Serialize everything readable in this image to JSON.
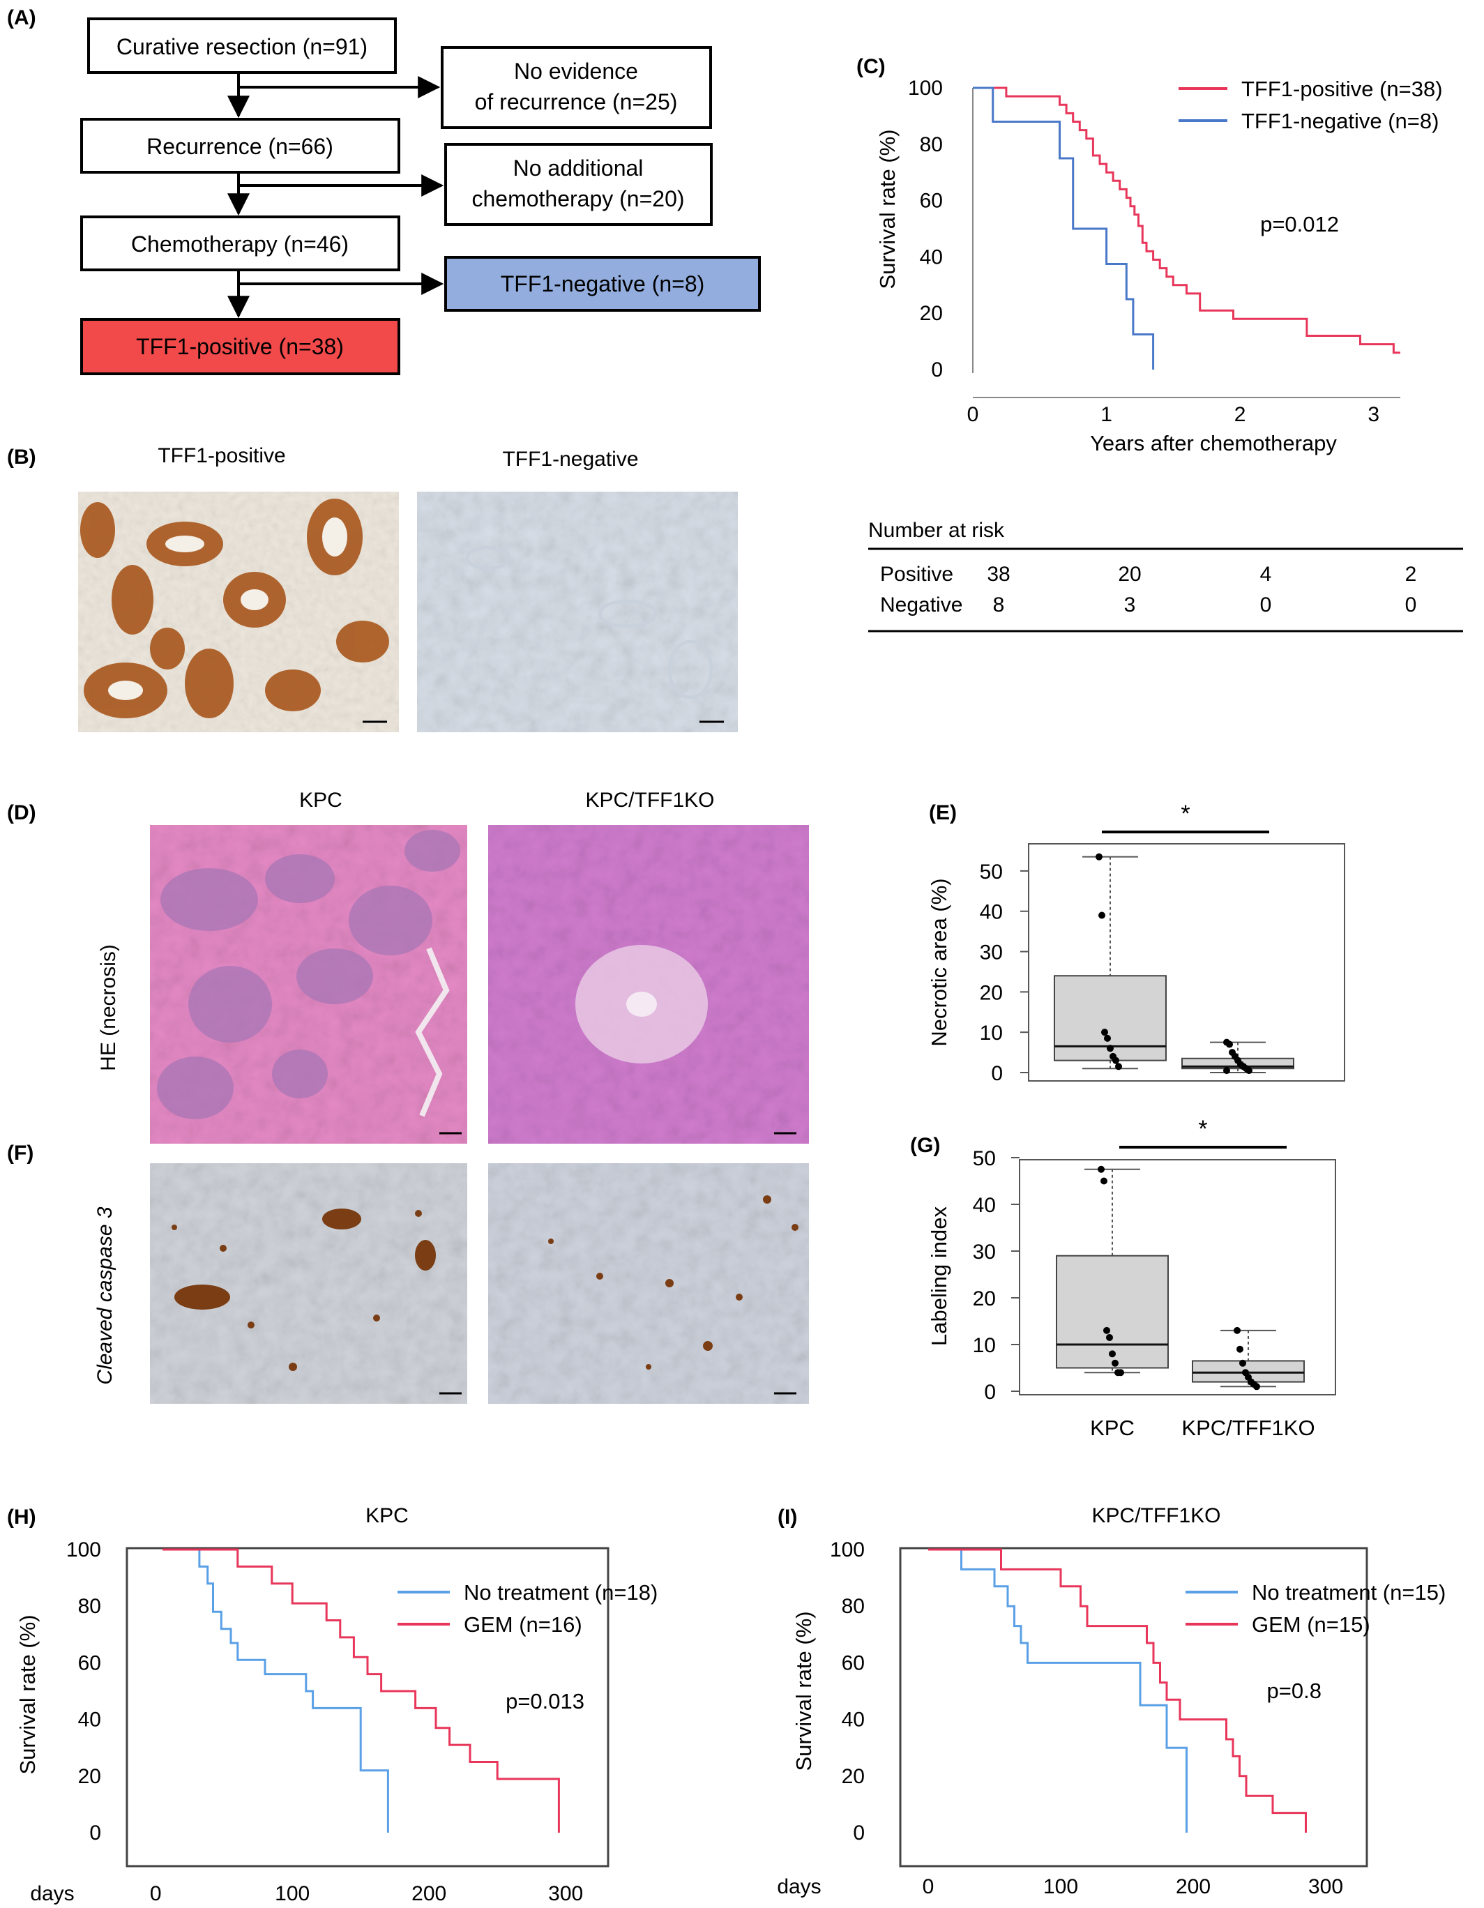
{
  "panels": {
    "A": "(A)",
    "B": "(B)",
    "C": "(C)",
    "D": "(D)",
    "E": "(E)",
    "F": "(F)",
    "G": "(G)",
    "H": "(H)",
    "I": "(I)"
  },
  "flowchart": {
    "curative": "Curative resection (n=91)",
    "no_evidence_1": "No evidence",
    "no_evidence_2": "of recurrence (n=25)",
    "recurrence": "Recurrence (n=66)",
    "no_chemo_1": "No additional",
    "no_chemo_2": "chemotherapy (n=20)",
    "chemotherapy": "Chemotherapy (n=46)",
    "tff1_negative": "TFF1-negative (n=8)",
    "tff1_positive": "TFF1-positive (n=38)",
    "colors": {
      "positive": "#f24a4a",
      "negative": "#93aede"
    }
  },
  "histology_B": {
    "left_label": "TFF1-positive",
    "right_label": "TFF1-negative"
  },
  "risk_table": {
    "title": "Number at risk",
    "rows": [
      {
        "label": "Positive",
        "values": [
          "38",
          "20",
          "4",
          "2"
        ]
      },
      {
        "label": "Negative",
        "values": [
          "8",
          "3",
          "0",
          "0"
        ]
      }
    ]
  },
  "histology_D": {
    "col_left": "KPC",
    "col_right": "KPC/TFF1KO",
    "row_label": "HE (necrosis)"
  },
  "histology_F": {
    "row_label": "Cleaved caspase 3"
  },
  "chart_data": [
    {
      "id": "C",
      "type": "line",
      "xlabel": "Years after chemotherapy",
      "ylabel": "Survival rate (%)",
      "xlim": [
        0,
        3.2
      ],
      "ylim": [
        0,
        100
      ],
      "xticks": [
        "0",
        "1",
        "2",
        "3"
      ],
      "yticks": [
        "0",
        "20",
        "40",
        "60",
        "80",
        "100"
      ],
      "annotation": "p=0.012",
      "series": [
        {
          "name": "TFF1-positive (n=38)",
          "color": "#e8365a",
          "steps": [
            [
              0,
              100
            ],
            [
              0.25,
              100
            ],
            [
              0.25,
              97
            ],
            [
              0.65,
              97
            ],
            [
              0.65,
              94
            ],
            [
              0.7,
              94
            ],
            [
              0.7,
              91
            ],
            [
              0.75,
              91
            ],
            [
              0.75,
              88
            ],
            [
              0.8,
              88
            ],
            [
              0.8,
              85
            ],
            [
              0.85,
              85
            ],
            [
              0.85,
              82
            ],
            [
              0.9,
              82
            ],
            [
              0.9,
              76
            ],
            [
              0.95,
              76
            ],
            [
              0.95,
              73
            ],
            [
              1.0,
              73
            ],
            [
              1.0,
              70
            ],
            [
              1.05,
              70
            ],
            [
              1.05,
              67
            ],
            [
              1.1,
              67
            ],
            [
              1.1,
              64
            ],
            [
              1.15,
              64
            ],
            [
              1.15,
              61
            ],
            [
              1.18,
              61
            ],
            [
              1.18,
              58
            ],
            [
              1.21,
              58
            ],
            [
              1.21,
              55
            ],
            [
              1.24,
              55
            ],
            [
              1.24,
              51
            ],
            [
              1.27,
              51
            ],
            [
              1.27,
              45
            ],
            [
              1.3,
              45
            ],
            [
              1.3,
              42
            ],
            [
              1.35,
              42
            ],
            [
              1.35,
              39
            ],
            [
              1.4,
              39
            ],
            [
              1.4,
              36
            ],
            [
              1.45,
              36
            ],
            [
              1.45,
              33
            ],
            [
              1.5,
              33
            ],
            [
              1.5,
              30
            ],
            [
              1.6,
              30
            ],
            [
              1.6,
              27
            ],
            [
              1.7,
              27
            ],
            [
              1.7,
              21
            ],
            [
              1.95,
              21
            ],
            [
              1.95,
              18
            ],
            [
              2.5,
              18
            ],
            [
              2.5,
              12
            ],
            [
              2.9,
              12
            ],
            [
              2.9,
              9
            ],
            [
              3.15,
              9
            ],
            [
              3.15,
              6
            ],
            [
              3.2,
              6
            ]
          ]
        },
        {
          "name": "TFF1-negative (n=8)",
          "color": "#4a78c8",
          "steps": [
            [
              0,
              100
            ],
            [
              0.15,
              100
            ],
            [
              0.15,
              88
            ],
            [
              0.65,
              88
            ],
            [
              0.65,
              75
            ],
            [
              0.75,
              75
            ],
            [
              0.75,
              50
            ],
            [
              1.0,
              50
            ],
            [
              1.0,
              37.5
            ],
            [
              1.15,
              37.5
            ],
            [
              1.15,
              25
            ],
            [
              1.2,
              25
            ],
            [
              1.2,
              12.5
            ],
            [
              1.35,
              12.5
            ],
            [
              1.35,
              0
            ]
          ]
        }
      ]
    },
    {
      "id": "E",
      "type": "box",
      "ylabel": "Necrotic area (%)",
      "ylim": [
        0,
        55
      ],
      "yticks": [
        "0",
        "10",
        "20",
        "30",
        "40",
        "50"
      ],
      "significance": "*",
      "groups": [
        {
          "name": "KPC",
          "whisker_low": 1,
          "q1": 3,
          "median": 6.5,
          "q3": 24,
          "whisker_high": 53.5,
          "points": [
            53.5,
            39,
            10,
            8.5,
            6,
            4,
            3,
            1.5
          ]
        },
        {
          "name": "KPC/TFF1KO",
          "whisker_low": 0,
          "q1": 1,
          "median": 1.5,
          "q3": 3.5,
          "whisker_high": 7.5,
          "points": [
            7.5,
            7,
            5,
            4,
            3,
            2,
            1.5,
            1,
            0.5,
            0.5
          ]
        }
      ]
    },
    {
      "id": "G",
      "type": "box",
      "ylabel": "Labeling index",
      "ylim": [
        0,
        50
      ],
      "yticks": [
        "0",
        "10",
        "20",
        "30",
        "40",
        "50"
      ],
      "xticks": [
        "KPC",
        "KPC/TFF1KO"
      ],
      "significance": "*",
      "groups": [
        {
          "name": "KPC",
          "whisker_low": 4,
          "q1": 5,
          "median": 10,
          "q3": 29,
          "whisker_high": 47.5,
          "points": [
            47.5,
            45,
            13,
            11.5,
            8,
            6,
            4,
            4
          ]
        },
        {
          "name": "KPC/TFF1KO",
          "whisker_low": 1,
          "q1": 2,
          "median": 4,
          "q3": 6.5,
          "whisker_high": 13,
          "points": [
            13,
            9,
            6,
            4,
            3,
            2,
            1.5,
            1
          ]
        }
      ]
    },
    {
      "id": "H",
      "type": "line",
      "title": "KPC",
      "xlabel": "days",
      "ylabel": "Survival rate (%)",
      "xlim": [
        -20,
        330
      ],
      "ylim": [
        0,
        100
      ],
      "xticks": [
        "0",
        "100",
        "200",
        "300"
      ],
      "yticks": [
        "0",
        "20",
        "40",
        "60",
        "80",
        "100"
      ],
      "annotation": "p=0.013",
      "series": [
        {
          "name": "No treatment (n=18)",
          "color": "#5aa0e6",
          "steps": [
            [
              5,
              100
            ],
            [
              32,
              100
            ],
            [
              32,
              94
            ],
            [
              38,
              94
            ],
            [
              38,
              88
            ],
            [
              42,
              88
            ],
            [
              42,
              78
            ],
            [
              48,
              78
            ],
            [
              48,
              72
            ],
            [
              55,
              72
            ],
            [
              55,
              67
            ],
            [
              60,
              67
            ],
            [
              60,
              61
            ],
            [
              80,
              61
            ],
            [
              80,
              56
            ],
            [
              110,
              56
            ],
            [
              110,
              50
            ],
            [
              115,
              50
            ],
            [
              115,
              44
            ],
            [
              150,
              44
            ],
            [
              150,
              22
            ],
            [
              170,
              22
            ],
            [
              170,
              0
            ]
          ]
        },
        {
          "name": "GEM (n=16)",
          "color": "#e8365a",
          "steps": [
            [
              5,
              100
            ],
            [
              60,
              100
            ],
            [
              60,
              94
            ],
            [
              85,
              94
            ],
            [
              85,
              88
            ],
            [
              100,
              88
            ],
            [
              100,
              81
            ],
            [
              125,
              81
            ],
            [
              125,
              75
            ],
            [
              135,
              75
            ],
            [
              135,
              69
            ],
            [
              145,
              69
            ],
            [
              145,
              62
            ],
            [
              155,
              62
            ],
            [
              155,
              56
            ],
            [
              165,
              56
            ],
            [
              165,
              50
            ],
            [
              190,
              50
            ],
            [
              190,
              44
            ],
            [
              205,
              44
            ],
            [
              205,
              37
            ],
            [
              215,
              37
            ],
            [
              215,
              31
            ],
            [
              230,
              31
            ],
            [
              230,
              25
            ],
            [
              250,
              25
            ],
            [
              250,
              19
            ],
            [
              295,
              19
            ],
            [
              295,
              0
            ]
          ]
        }
      ]
    },
    {
      "id": "I",
      "type": "line",
      "title": "KPC/TFF1KO",
      "xlabel": "days",
      "ylabel": "Survival rate (%)",
      "xlim": [
        -20,
        330
      ],
      "ylim": [
        0,
        100
      ],
      "xticks": [
        "0",
        "100",
        "200",
        "300"
      ],
      "yticks": [
        "0",
        "20",
        "40",
        "60",
        "80",
        "100"
      ],
      "annotation": "p=0.8",
      "series": [
        {
          "name": "No treatment (n=15)",
          "color": "#5aa0e6",
          "steps": [
            [
              0,
              100
            ],
            [
              25,
              100
            ],
            [
              25,
              93
            ],
            [
              50,
              93
            ],
            [
              50,
              87
            ],
            [
              60,
              87
            ],
            [
              60,
              80
            ],
            [
              65,
              80
            ],
            [
              65,
              73
            ],
            [
              70,
              73
            ],
            [
              70,
              67
            ],
            [
              75,
              67
            ],
            [
              75,
              60
            ],
            [
              160,
              60
            ],
            [
              160,
              45
            ],
            [
              180,
              45
            ],
            [
              180,
              30
            ],
            [
              195,
              30
            ],
            [
              195,
              0
            ]
          ]
        },
        {
          "name": "GEM (n=15)",
          "color": "#e8365a",
          "steps": [
            [
              0,
              100
            ],
            [
              55,
              100
            ],
            [
              55,
              93
            ],
            [
              100,
              93
            ],
            [
              100,
              87
            ],
            [
              115,
              87
            ],
            [
              115,
              80
            ],
            [
              120,
              80
            ],
            [
              120,
              73
            ],
            [
              165,
              73
            ],
            [
              165,
              67
            ],
            [
              170,
              67
            ],
            [
              170,
              60
            ],
            [
              175,
              60
            ],
            [
              175,
              53
            ],
            [
              180,
              53
            ],
            [
              180,
              47
            ],
            [
              190,
              47
            ],
            [
              190,
              40
            ],
            [
              225,
              40
            ],
            [
              225,
              33
            ],
            [
              230,
              33
            ],
            [
              230,
              27
            ],
            [
              235,
              27
            ],
            [
              235,
              20
            ],
            [
              240,
              20
            ],
            [
              240,
              13
            ],
            [
              260,
              13
            ],
            [
              260,
              7
            ],
            [
              285,
              7
            ],
            [
              285,
              0
            ]
          ]
        }
      ]
    }
  ]
}
